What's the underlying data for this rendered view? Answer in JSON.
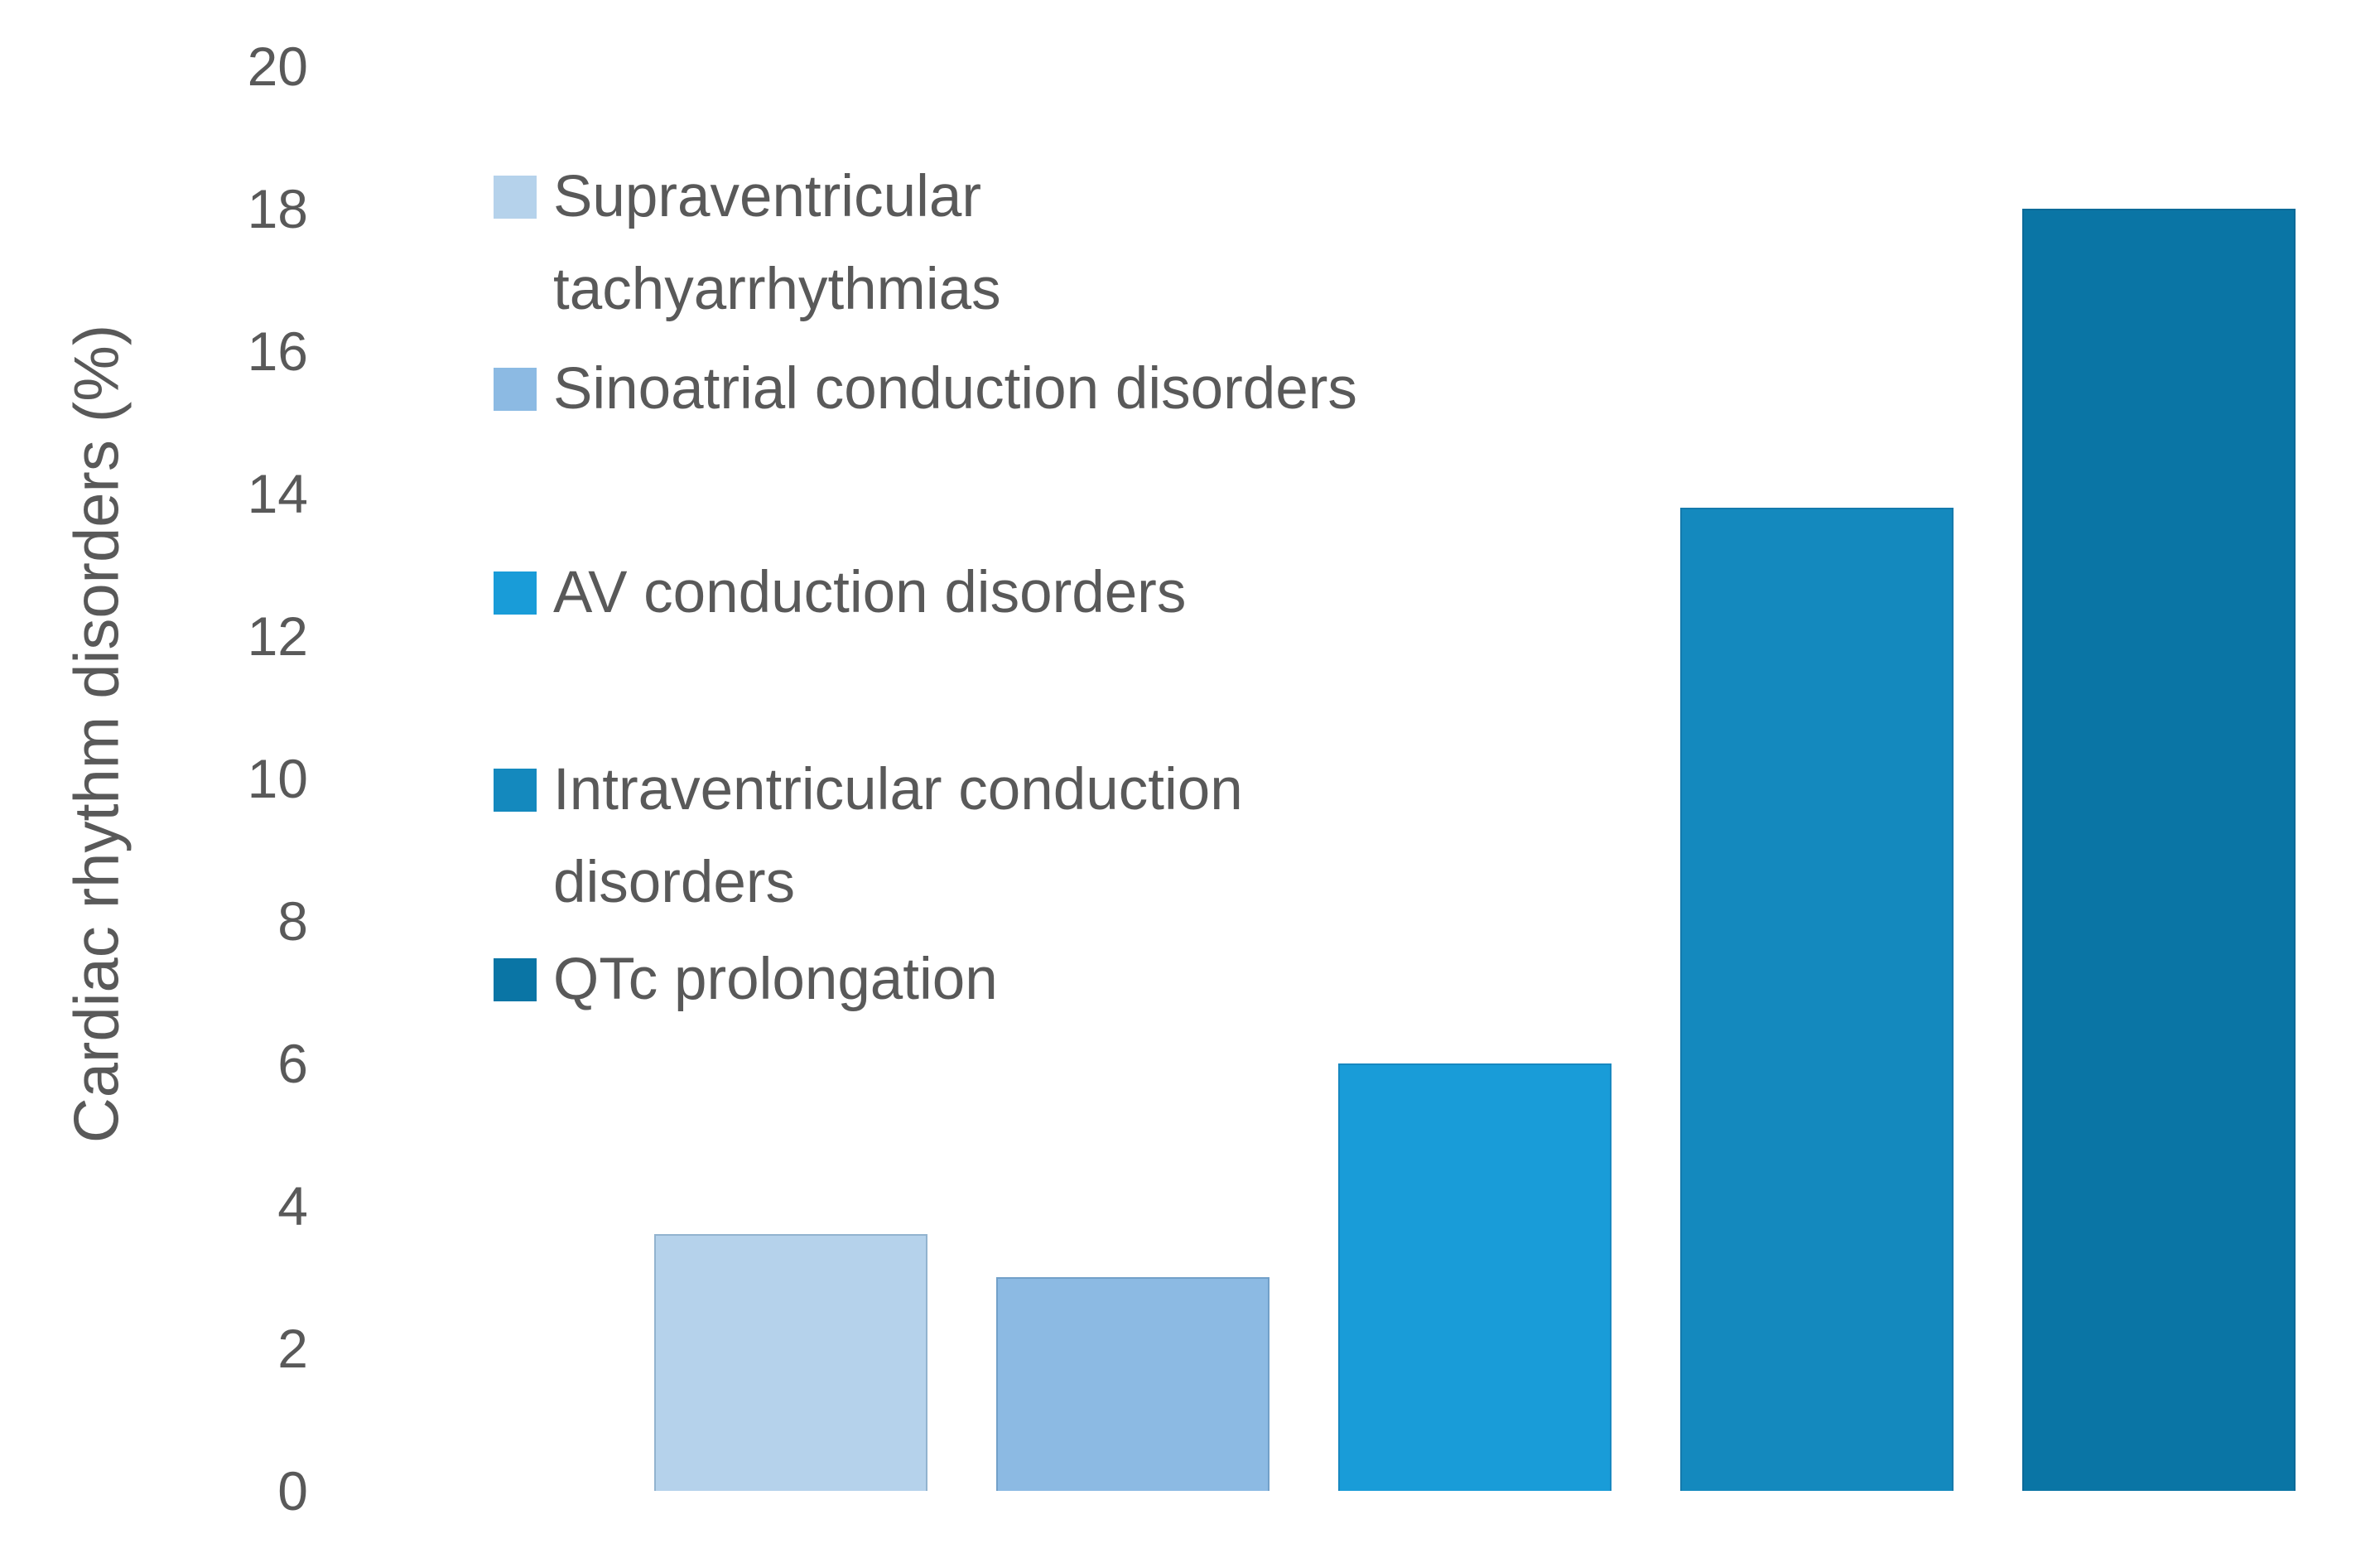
{
  "chart_data": {
    "type": "bar",
    "title": "",
    "xlabel": "",
    "ylabel": "Cardiac rhythm disorders (%)",
    "ylim": [
      0,
      20
    ],
    "yticks": [
      20,
      18,
      16,
      14,
      12,
      10,
      8,
      6,
      4,
      2,
      0
    ],
    "grid": false,
    "axis_lines": false,
    "legend_position": "inside-upper-left",
    "categories": [
      "Supraventricular tachyarrhythmias",
      "Sinoatrial conduction disorders",
      "AV conduction disorders",
      "Intraventricular conduction disorders",
      "QTc prolongation"
    ],
    "values": [
      3.6,
      3.0,
      6.0,
      13.8,
      18.0
    ],
    "colors": [
      "#B5D2EB",
      "#8CBAE3",
      "#199CD8",
      "#1489BE",
      "#0A75A5"
    ],
    "text_color": "#595959",
    "legend": [
      {
        "label": "Supraventricular tachyarrhythmias",
        "lines": [
          "Supraventricular",
          "tachyarrhythmias"
        ],
        "color": "#B5D2EB"
      },
      {
        "label": "Sinoatrial conduction disorders",
        "lines": [
          "Sinoatrial conduction disorders"
        ],
        "color": "#8CBAE3"
      },
      {
        "label": "AV conduction disorders",
        "lines": [
          "AV conduction disorders"
        ],
        "color": "#199CD8"
      },
      {
        "label": "Intraventricular conduction disorders",
        "lines": [
          "Intraventricular conduction",
          "disorders"
        ],
        "color": "#1489BE"
      },
      {
        "label": "QTc prolongation",
        "lines": [
          "QTc prolongation"
        ],
        "color": "#0A75A5"
      }
    ]
  }
}
